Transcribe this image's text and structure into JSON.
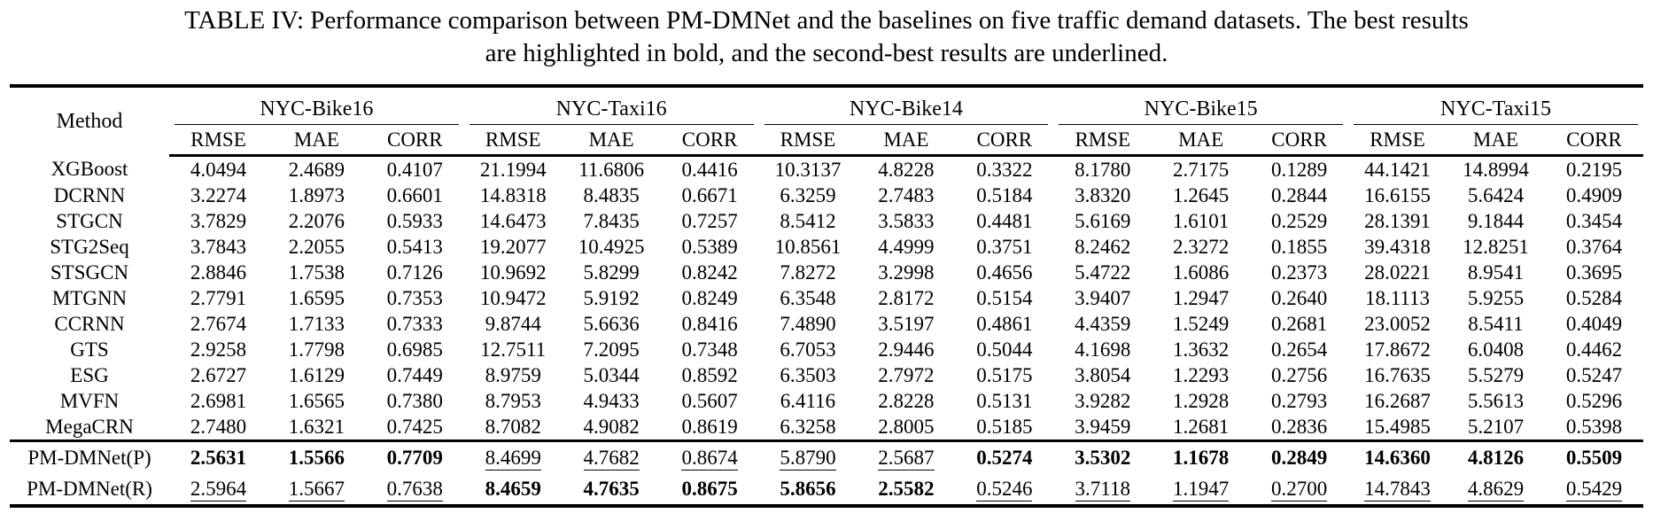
{
  "caption": {
    "lines": [
      "TABLE IV: Performance comparison between PM-DMNet and the baselines on five traffic demand datasets. The best results",
      "are highlighted in bold, and the second-best results are underlined."
    ]
  },
  "table": {
    "method_header": "Method",
    "groups": [
      "NYC-Bike16",
      "NYC-Taxi16",
      "NYC-Bike14",
      "NYC-Bike15",
      "NYC-Taxi15"
    ],
    "metrics": [
      "RMSE",
      "MAE",
      "CORR"
    ],
    "rows": [
      {
        "method": "XGBoost",
        "values": [
          "4.0494",
          "2.4689",
          "0.4107",
          "21.1994",
          "11.6806",
          "0.4416",
          "10.3137",
          "4.8228",
          "0.3322",
          "8.1780",
          "2.7175",
          "0.1289",
          "44.1421",
          "14.8994",
          "0.2195"
        ]
      },
      {
        "method": "DCRNN",
        "values": [
          "3.2274",
          "1.8973",
          "0.6601",
          "14.8318",
          "8.4835",
          "0.6671",
          "6.3259",
          "2.7483",
          "0.5184",
          "3.8320",
          "1.2645",
          "0.2844",
          "16.6155",
          "5.6424",
          "0.4909"
        ]
      },
      {
        "method": "STGCN",
        "values": [
          "3.7829",
          "2.2076",
          "0.5933",
          "14.6473",
          "7.8435",
          "0.7257",
          "8.5412",
          "3.5833",
          "0.4481",
          "5.6169",
          "1.6101",
          "0.2529",
          "28.1391",
          "9.1844",
          "0.3454"
        ]
      },
      {
        "method": "STG2Seq",
        "values": [
          "3.7843",
          "2.2055",
          "0.5413",
          "19.2077",
          "10.4925",
          "0.5389",
          "10.8561",
          "4.4999",
          "0.3751",
          "8.2462",
          "2.3272",
          "0.1855",
          "39.4318",
          "12.8251",
          "0.3764"
        ]
      },
      {
        "method": "STSGCN",
        "values": [
          "2.8846",
          "1.7538",
          "0.7126",
          "10.9692",
          "5.8299",
          "0.8242",
          "7.8272",
          "3.2998",
          "0.4656",
          "5.4722",
          "1.6086",
          "0.2373",
          "28.0221",
          "8.9541",
          "0.3695"
        ]
      },
      {
        "method": "MTGNN",
        "values": [
          "2.7791",
          "1.6595",
          "0.7353",
          "10.9472",
          "5.9192",
          "0.8249",
          "6.3548",
          "2.8172",
          "0.5154",
          "3.9407",
          "1.2947",
          "0.2640",
          "18.1113",
          "5.9255",
          "0.5284"
        ]
      },
      {
        "method": "CCRNN",
        "values": [
          "2.7674",
          "1.7133",
          "0.7333",
          "9.8744",
          "5.6636",
          "0.8416",
          "7.4890",
          "3.5197",
          "0.4861",
          "4.4359",
          "1.5249",
          "0.2681",
          "23.0052",
          "8.5411",
          "0.4049"
        ]
      },
      {
        "method": "GTS",
        "values": [
          "2.9258",
          "1.7798",
          "0.6985",
          "12.7511",
          "7.2095",
          "0.7348",
          "6.7053",
          "2.9446",
          "0.5044",
          "4.1698",
          "1.3632",
          "0.2654",
          "17.8672",
          "6.0408",
          "0.4462"
        ]
      },
      {
        "method": "ESG",
        "values": [
          "2.6727",
          "1.6129",
          "0.7449",
          "8.9759",
          "5.0344",
          "0.8592",
          "6.3503",
          "2.7972",
          "0.5175",
          "3.8054",
          "1.2293",
          "0.2756",
          "16.7635",
          "5.5279",
          "0.5247"
        ]
      },
      {
        "method": "MVFN",
        "values": [
          "2.6981",
          "1.6565",
          "0.7380",
          "8.7953",
          "4.9433",
          "0.5607",
          "6.4116",
          "2.8228",
          "0.5131",
          "3.9282",
          "1.2928",
          "0.2793",
          "16.2687",
          "5.5613",
          "0.5296"
        ]
      },
      {
        "method": "MegaCRN",
        "values": [
          "2.7480",
          "1.6321",
          "0.7425",
          "8.7082",
          "4.9082",
          "0.8619",
          "6.3258",
          "2.8005",
          "0.5185",
          "3.9459",
          "1.2681",
          "0.2836",
          "15.4985",
          "5.2107",
          "0.5398"
        ]
      }
    ],
    "highlight_rows": [
      {
        "method": "PM-DMNet(P)",
        "values": [
          "2.5631",
          "1.5566",
          "0.7709",
          "8.4699",
          "4.7682",
          "0.8674",
          "5.8790",
          "2.5687",
          "0.5274",
          "3.5302",
          "1.1678",
          "0.2849",
          "14.6360",
          "4.8126",
          "0.5509"
        ],
        "styles": [
          "b",
          "b",
          "b",
          "u",
          "u",
          "u",
          "u",
          "u",
          "b",
          "b",
          "b",
          "b",
          "b",
          "b",
          "b"
        ]
      },
      {
        "method": "PM-DMNet(R)",
        "values": [
          "2.5964",
          "1.5667",
          "0.7638",
          "8.4659",
          "4.7635",
          "0.8675",
          "5.8656",
          "2.5582",
          "0.5246",
          "3.7118",
          "1.1947",
          "0.2700",
          "14.7843",
          "4.8629",
          "0.5429"
        ],
        "styles": [
          "u",
          "u",
          "u",
          "b",
          "b",
          "b",
          "b",
          "b",
          "u",
          "u",
          "u",
          "u",
          "u",
          "u",
          "u"
        ]
      }
    ]
  },
  "colors": {
    "text": "#000000",
    "background": "#ffffff",
    "rule": "#000000"
  }
}
